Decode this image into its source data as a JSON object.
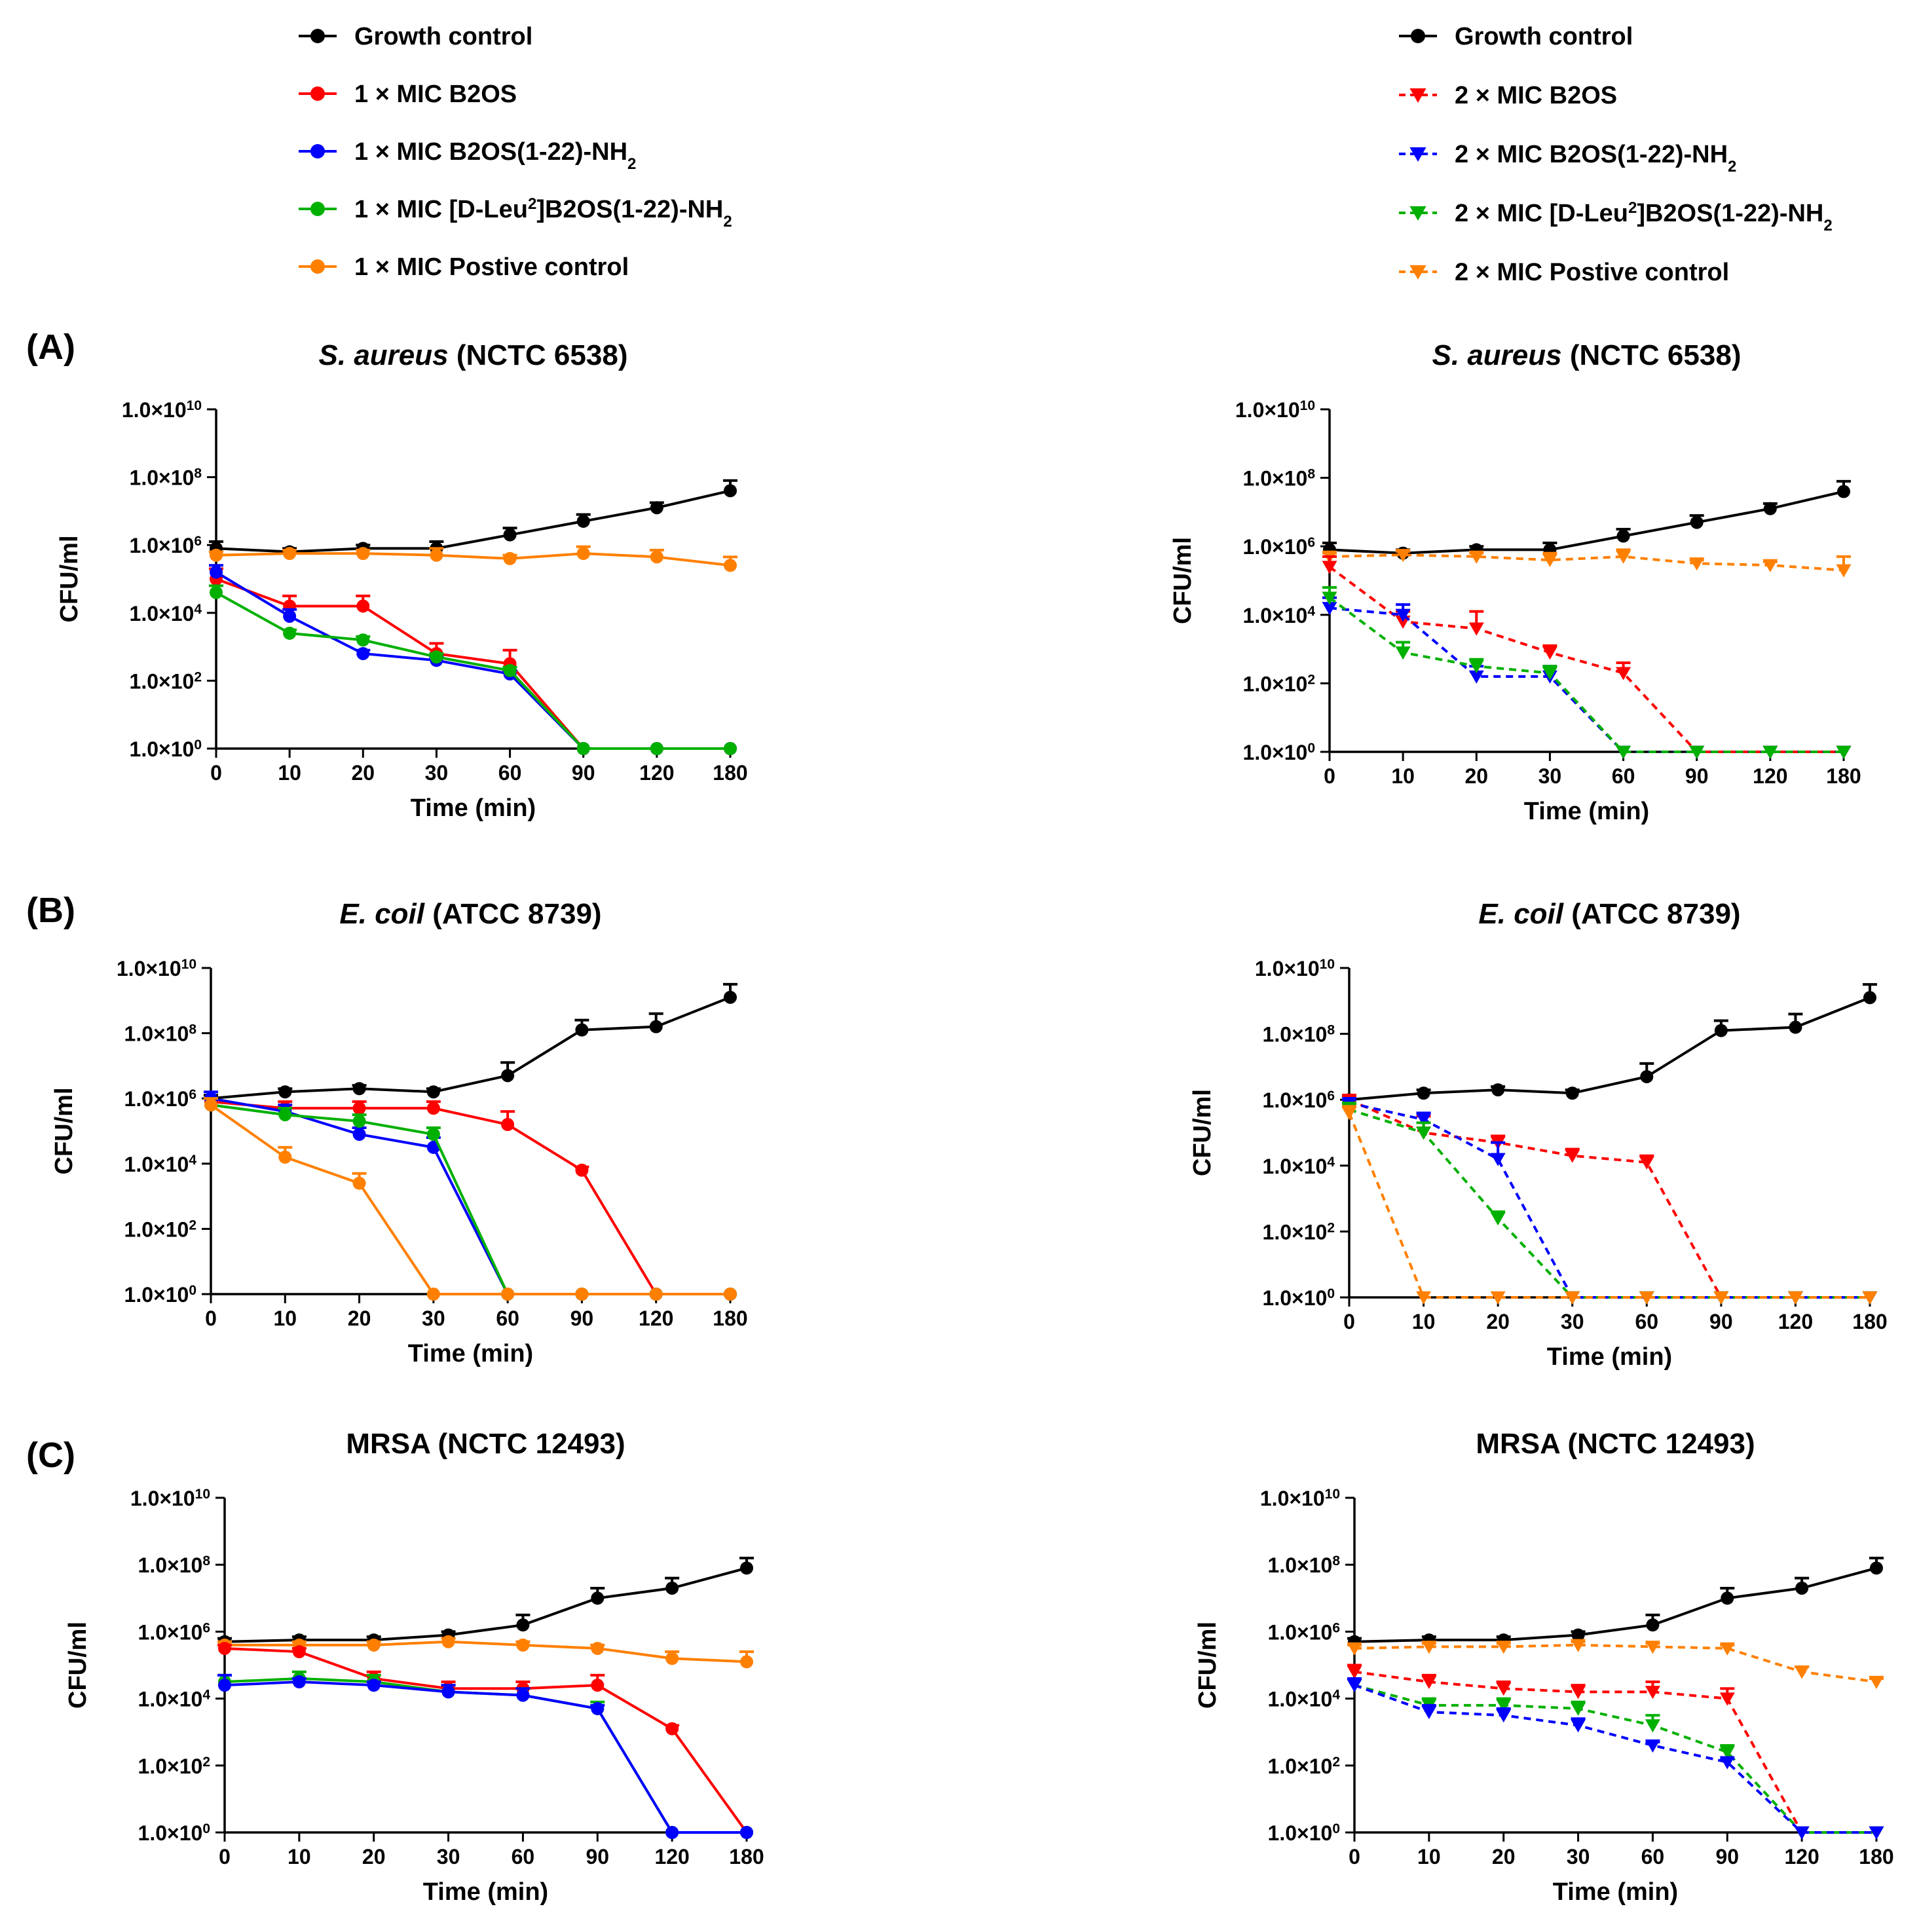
{
  "figure": {
    "panel_labels": [
      "(A)",
      "(B)",
      "(C)"
    ],
    "legend_left": [
      {
        "label": "Growth control",
        "color": "#000000",
        "marker": "circle",
        "dash": false
      },
      {
        "label": "1 × MIC B2OS",
        "color": "#ff0000",
        "marker": "circle",
        "dash": false
      },
      {
        "label": "1 × MIC B2OS(1-22)-NH",
        "sub": "2",
        "color": "#0000ff",
        "marker": "circle",
        "dash": false
      },
      {
        "label": "1 × MIC [D-Leu",
        "sup": "2",
        "label_rest": "]B2OS(1-22)-NH",
        "sub": "2",
        "color": "#00b000",
        "marker": "circle",
        "dash": false
      },
      {
        "label": "1 × MIC Postive control",
        "color": "#ff8000",
        "marker": "circle",
        "dash": false
      }
    ],
    "legend_right": [
      {
        "label": "Growth control",
        "color": "#000000",
        "marker": "circle",
        "dash": false
      },
      {
        "label": "2 × MIC B2OS",
        "color": "#ff0000",
        "marker": "triangle",
        "dash": true
      },
      {
        "label": "2 × MIC B2OS(1-22)-NH",
        "sub": "2",
        "color": "#0000ff",
        "marker": "triangle",
        "dash": true
      },
      {
        "label": "2 × MIC [D-Leu",
        "sup": "2",
        "label_rest": "]B2OS(1-22)-NH",
        "sub": "2",
        "color": "#00b000",
        "marker": "triangle",
        "dash": true
      },
      {
        "label": "2 × MIC Postive control",
        "color": "#ff8000",
        "marker": "triangle",
        "dash": true
      }
    ]
  },
  "chart_data": [
    {
      "type": "line",
      "panel": "A",
      "title_italic": "S. aureus",
      "title_rest": " (NCTC 6538)",
      "xlabel": "Time (min)",
      "ylabel": "CFU/ml",
      "categories": [
        "0",
        "10",
        "20",
        "30",
        "60",
        "90",
        "120",
        "180"
      ],
      "yticks": [
        {
          "exp": 0,
          "text": "1.0×10",
          "sup": "0"
        },
        {
          "exp": 2,
          "text": "1.0×10",
          "sup": "2"
        },
        {
          "exp": 4,
          "text": "1.0×10",
          "sup": "4"
        },
        {
          "exp": 6,
          "text": "1.0×10",
          "sup": "6"
        },
        {
          "exp": 8,
          "text": "1.0×10",
          "sup": "8"
        },
        {
          "exp": 10,
          "text": "1.0×10",
          "sup": "10"
        }
      ],
      "y_scale": "log10",
      "ylim_exp": [
        0,
        10
      ],
      "series": [
        {
          "name": "Growth control",
          "log10_values": [
            5.9,
            5.8,
            5.9,
            5.9,
            6.3,
            6.7,
            7.1,
            7.6
          ],
          "err_up": [
            0.2,
            0.1,
            0.1,
            0.2,
            0.2,
            0.2,
            0.15,
            0.3
          ]
        },
        {
          "name": "1 × MIC Postive control",
          "log10_values": [
            5.7,
            5.75,
            5.75,
            5.7,
            5.6,
            5.75,
            5.65,
            5.4
          ],
          "err_up": [
            0.1,
            0.1,
            0.1,
            0.2,
            0.1,
            0.2,
            0.2,
            0.25
          ]
        },
        {
          "name": "1 × MIC B2OS",
          "log10_values": [
            5.0,
            4.2,
            4.2,
            2.8,
            2.5,
            0,
            0,
            0
          ],
          "err_up": [
            0.3,
            0.3,
            0.3,
            0.3,
            0.4,
            0,
            0,
            0
          ]
        },
        {
          "name": "1 × MIC B2OS(1-22)-NH2",
          "log10_values": [
            5.2,
            3.9,
            2.8,
            2.6,
            2.2,
            0,
            0,
            0
          ],
          "err_up": [
            0.2,
            0.2,
            0.1,
            0.1,
            0.1,
            0,
            0,
            0
          ]
        },
        {
          "name": "1 × MIC [D-Leu2]B2OS(1-22)-NH2",
          "log10_values": [
            4.6,
            3.4,
            3.2,
            2.7,
            2.3,
            0,
            0,
            0
          ],
          "err_up": [
            0.2,
            0.1,
            0.1,
            0.1,
            0.1,
            0,
            0,
            0
          ]
        }
      ]
    },
    {
      "type": "line",
      "panel": "A",
      "title_italic": "S. aureus",
      "title_rest": " (NCTC 6538)",
      "xlabel": "Time (min)",
      "ylabel": "CFU/ml",
      "categories": [
        "0",
        "10",
        "20",
        "30",
        "60",
        "90",
        "120",
        "180"
      ],
      "yticks": [
        {
          "exp": 0,
          "text": "1.0×10",
          "sup": "0"
        },
        {
          "exp": 2,
          "text": "1.0×10",
          "sup": "2"
        },
        {
          "exp": 4,
          "text": "1.0×10",
          "sup": "4"
        },
        {
          "exp": 6,
          "text": "1.0×10",
          "sup": "6"
        },
        {
          "exp": 8,
          "text": "1.0×10",
          "sup": "8"
        },
        {
          "exp": 10,
          "text": "1.0×10",
          "sup": "10"
        }
      ],
      "y_scale": "log10",
      "ylim_exp": [
        0,
        10
      ],
      "series": [
        {
          "name": "Growth control",
          "log10_values": [
            5.9,
            5.8,
            5.9,
            5.9,
            6.3,
            6.7,
            7.1,
            7.6
          ],
          "err_up": [
            0.2,
            0.1,
            0.1,
            0.2,
            0.2,
            0.2,
            0.15,
            0.3
          ]
        },
        {
          "name": "2 × MIC Postive control",
          "log10_values": [
            5.7,
            5.75,
            5.7,
            5.6,
            5.7,
            5.5,
            5.45,
            5.3
          ],
          "err_up": [
            0.1,
            0.1,
            0.1,
            0.2,
            0.2,
            0.1,
            0.1,
            0.4
          ]
        },
        {
          "name": "2 × MIC B2OS",
          "log10_values": [
            5.4,
            3.8,
            3.6,
            2.9,
            2.3,
            0,
            0,
            0
          ],
          "err_up": [
            0.3,
            0.3,
            0.5,
            0.2,
            0.3,
            0,
            0,
            0
          ]
        },
        {
          "name": "2 × MIC B2OS(1-22)-NH2",
          "log10_values": [
            4.2,
            4.0,
            2.2,
            2.2,
            0,
            0,
            0,
            0
          ],
          "err_up": [
            0.3,
            0.3,
            0.3,
            0.3,
            0,
            0,
            0,
            0
          ]
        },
        {
          "name": "2 × MIC [D-Leu2]B2OS(1-22)-NH2",
          "log10_values": [
            4.5,
            2.9,
            2.5,
            2.3,
            0,
            0,
            0,
            0
          ],
          "err_up": [
            0.3,
            0.3,
            0.2,
            0.2,
            0,
            0,
            0,
            0
          ]
        }
      ]
    },
    {
      "type": "line",
      "panel": "B",
      "title_italic": "E. coil",
      "title_rest": " (ATCC 8739)",
      "xlabel": "Time (min)",
      "ylabel": "CFU/ml",
      "categories": [
        "0",
        "10",
        "20",
        "30",
        "60",
        "90",
        "120",
        "180"
      ],
      "yticks": [
        {
          "exp": 0,
          "text": "1.0×10",
          "sup": "0"
        },
        {
          "exp": 2,
          "text": "1.0×10",
          "sup": "2"
        },
        {
          "exp": 4,
          "text": "1.0×10",
          "sup": "4"
        },
        {
          "exp": 6,
          "text": "1.0×10",
          "sup": "6"
        },
        {
          "exp": 8,
          "text": "1.0×10",
          "sup": "8"
        },
        {
          "exp": 10,
          "text": "1.0×10",
          "sup": "10"
        }
      ],
      "y_scale": "log10",
      "ylim_exp": [
        0,
        10
      ],
      "series": [
        {
          "name": "Growth control",
          "log10_values": [
            6.0,
            6.2,
            6.3,
            6.2,
            6.7,
            8.1,
            8.2,
            9.1
          ],
          "err_up": [
            0.1,
            0.1,
            0.1,
            0.1,
            0.4,
            0.3,
            0.4,
            0.4
          ]
        },
        {
          "name": "1 × MIC B2OS",
          "log10_values": [
            5.9,
            5.7,
            5.7,
            5.7,
            5.2,
            3.8,
            0,
            0
          ],
          "err_up": [
            0.1,
            0.2,
            0.2,
            0.2,
            0.4,
            0.1,
            0,
            0
          ]
        },
        {
          "name": "1 × MIC B2OS(1-22)-NH2",
          "log10_values": [
            6.0,
            5.6,
            4.9,
            4.5,
            0,
            0,
            0,
            0
          ],
          "err_up": [
            0.2,
            0.2,
            0.2,
            0.3,
            0,
            0,
            0,
            0
          ]
        },
        {
          "name": "1 × MIC [D-Leu2]B2OS(1-22)-NH2",
          "log10_values": [
            5.8,
            5.5,
            5.3,
            4.9,
            0,
            0,
            0,
            0
          ],
          "err_up": [
            0.2,
            0.2,
            0.2,
            0.2,
            0,
            0,
            0,
            0
          ]
        },
        {
          "name": "1 × MIC Postive control",
          "log10_values": [
            5.8,
            4.2,
            3.4,
            0,
            0,
            0,
            0,
            0
          ],
          "err_up": [
            0.2,
            0.3,
            0.3,
            0,
            0,
            0,
            0,
            0
          ]
        }
      ]
    },
    {
      "type": "line",
      "panel": "B",
      "title_italic": "E. coil",
      "title_rest": " (ATCC 8739)",
      "xlabel": "Time (min)",
      "ylabel": "CFU/ml",
      "categories": [
        "0",
        "10",
        "20",
        "30",
        "60",
        "90",
        "120",
        "180"
      ],
      "yticks": [
        {
          "exp": 0,
          "text": "1.0×10",
          "sup": "0"
        },
        {
          "exp": 2,
          "text": "1.0×10",
          "sup": "2"
        },
        {
          "exp": 4,
          "text": "1.0×10",
          "sup": "4"
        },
        {
          "exp": 6,
          "text": "1.0×10",
          "sup": "6"
        },
        {
          "exp": 8,
          "text": "1.0×10",
          "sup": "8"
        },
        {
          "exp": 10,
          "text": "1.0×10",
          "sup": "10"
        }
      ],
      "y_scale": "log10",
      "ylim_exp": [
        0,
        10
      ],
      "series": [
        {
          "name": "Growth control",
          "log10_values": [
            6.0,
            6.2,
            6.3,
            6.2,
            6.7,
            8.1,
            8.2,
            9.1
          ],
          "err_up": [
            0.1,
            0.1,
            0.1,
            0.1,
            0.4,
            0.3,
            0.4,
            0.4
          ]
        },
        {
          "name": "2 × MIC B2OS",
          "log10_values": [
            6.0,
            5.0,
            4.7,
            4.3,
            4.1,
            0,
            0,
            0
          ],
          "err_up": [
            0.1,
            0.5,
            0.2,
            0.2,
            0.2,
            0,
            0,
            0
          ]
        },
        {
          "name": "2 × MIC B2OS(1-22)-NH2",
          "log10_values": [
            5.9,
            5.4,
            4.2,
            0,
            0,
            0,
            0,
            0
          ],
          "err_up": [
            0.1,
            0.2,
            0.5,
            0,
            0,
            0,
            0,
            0
          ]
        },
        {
          "name": "2 × MIC [D-Leu2]B2OS(1-22)-NH2",
          "log10_values": [
            5.7,
            5.0,
            2.4,
            0,
            0,
            0,
            0,
            0
          ],
          "err_up": [
            0.2,
            0.3,
            0.2,
            0,
            0,
            0,
            0,
            0
          ]
        },
        {
          "name": "2 × MIC Postive control",
          "log10_values": [
            5.6,
            0,
            0,
            0,
            0,
            0,
            0,
            0
          ],
          "err_up": [
            0.2,
            0,
            0,
            0,
            0,
            0,
            0,
            0
          ]
        }
      ]
    },
    {
      "type": "line",
      "panel": "C",
      "title_italic": "",
      "title_rest": "MRSA (NCTC 12493)",
      "xlabel": "Time (min)",
      "ylabel": "CFU/ml",
      "categories": [
        "0",
        "10",
        "20",
        "30",
        "60",
        "90",
        "120",
        "180"
      ],
      "yticks": [
        {
          "exp": 0,
          "text": "1.0×10",
          "sup": "0"
        },
        {
          "exp": 2,
          "text": "1.0×10",
          "sup": "2"
        },
        {
          "exp": 4,
          "text": "1.0×10",
          "sup": "4"
        },
        {
          "exp": 6,
          "text": "1.0×10",
          "sup": "6"
        },
        {
          "exp": 8,
          "text": "1.0×10",
          "sup": "8"
        },
        {
          "exp": 10,
          "text": "1.0×10",
          "sup": "10"
        }
      ],
      "y_scale": "log10",
      "ylim_exp": [
        0,
        10
      ],
      "series": [
        {
          "name": "Growth control",
          "log10_values": [
            5.7,
            5.75,
            5.75,
            5.9,
            6.2,
            7.0,
            7.3,
            7.9
          ],
          "err_up": [
            0.1,
            0.1,
            0.1,
            0.1,
            0.3,
            0.3,
            0.3,
            0.3
          ]
        },
        {
          "name": "1 × MIC Postive control",
          "log10_values": [
            5.6,
            5.6,
            5.6,
            5.7,
            5.6,
            5.5,
            5.2,
            5.1
          ],
          "err_up": [
            0.1,
            0.1,
            0.1,
            0.1,
            0.1,
            0.1,
            0.2,
            0.3
          ]
        },
        {
          "name": "1 × MIC B2OS",
          "log10_values": [
            5.5,
            5.4,
            4.6,
            4.3,
            4.3,
            4.4,
            3.1,
            0
          ],
          "err_up": [
            0.1,
            0.1,
            0.2,
            0.2,
            0.2,
            0.3,
            0.1,
            0
          ]
        },
        {
          "name": "1 × MIC [D-Leu2]B2OS(1-22)-NH2",
          "log10_values": [
            4.5,
            4.6,
            4.5,
            4.2,
            4.1,
            3.7,
            0,
            0
          ],
          "err_up": [
            0.2,
            0.2,
            0.2,
            0.2,
            0.2,
            0.2,
            0,
            0
          ]
        },
        {
          "name": "1 × MIC B2OS(1-22)-NH2",
          "log10_values": [
            4.4,
            4.5,
            4.4,
            4.2,
            4.1,
            3.7,
            0,
            0
          ],
          "err_up": [
            0.3,
            0.1,
            0.1,
            0.2,
            0.2,
            0.1,
            0,
            0
          ]
        }
      ]
    },
    {
      "type": "line",
      "panel": "C",
      "title_italic": "",
      "title_rest": "MRSA (NCTC 12493)",
      "xlabel": "Time (min)",
      "ylabel": "CFU/ml",
      "categories": [
        "0",
        "10",
        "20",
        "30",
        "60",
        "90",
        "120",
        "180"
      ],
      "yticks": [
        {
          "exp": 0,
          "text": "1.0×10",
          "sup": "0"
        },
        {
          "exp": 2,
          "text": "1.0×10",
          "sup": "2"
        },
        {
          "exp": 4,
          "text": "1.0×10",
          "sup": "4"
        },
        {
          "exp": 6,
          "text": "1.0×10",
          "sup": "6"
        },
        {
          "exp": 8,
          "text": "1.0×10",
          "sup": "8"
        },
        {
          "exp": 10,
          "text": "1.0×10",
          "sup": "10"
        }
      ],
      "y_scale": "log10",
      "ylim_exp": [
        0,
        10
      ],
      "series": [
        {
          "name": "Growth control",
          "log10_values": [
            5.7,
            5.75,
            5.75,
            5.9,
            6.2,
            7.0,
            7.3,
            7.9
          ],
          "err_up": [
            0.1,
            0.1,
            0.1,
            0.1,
            0.3,
            0.3,
            0.3,
            0.3
          ]
        },
        {
          "name": "2 × MIC Postive control",
          "log10_values": [
            5.5,
            5.55,
            5.55,
            5.6,
            5.55,
            5.5,
            4.8,
            4.5
          ],
          "err_up": [
            0.1,
            0.1,
            0.1,
            0.1,
            0.1,
            0.1,
            0.15,
            0.1
          ]
        },
        {
          "name": "2 × MIC B2OS",
          "log10_values": [
            4.8,
            4.5,
            4.3,
            4.2,
            4.2,
            4.0,
            0,
            0
          ],
          "err_up": [
            0.2,
            0.2,
            0.2,
            0.2,
            0.3,
            0.3,
            0,
            0
          ]
        },
        {
          "name": "2 × MIC [D-Leu2]B2OS(1-22)-NH2",
          "log10_values": [
            4.4,
            3.8,
            3.8,
            3.7,
            3.2,
            2.4,
            0,
            0
          ],
          "err_up": [
            0.2,
            0.2,
            0.2,
            0.2,
            0.3,
            0.2,
            0,
            0
          ]
        },
        {
          "name": "2 × MIC B2OS(1-22)-NH2",
          "log10_values": [
            4.4,
            3.6,
            3.5,
            3.2,
            2.6,
            2.1,
            0,
            0
          ],
          "err_up": [
            0.2,
            0.2,
            0.2,
            0.2,
            0.1,
            0.1,
            0,
            0
          ]
        }
      ]
    }
  ]
}
